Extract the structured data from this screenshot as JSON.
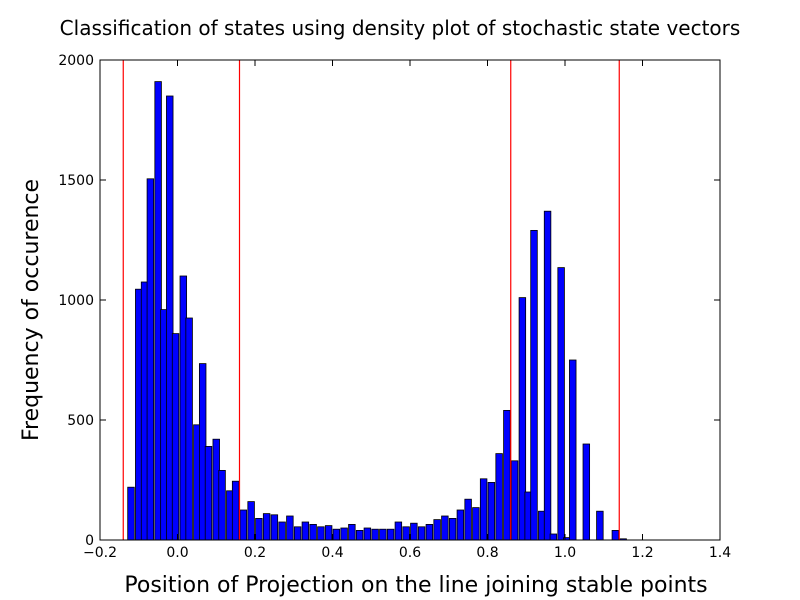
{
  "chart_data": {
    "type": "bar",
    "title": "Classification of states using density plot of stochastic state vectors",
    "xlabel": "Position of Projection on the line joining stable points",
    "ylabel": "Frequency of occurence",
    "xlim": [
      -0.2,
      1.4
    ],
    "ylim": [
      0,
      2000
    ],
    "xticks": [
      "−0.2",
      "0.0",
      "0.2",
      "0.4",
      "0.6",
      "0.8",
      "1.0",
      "1.2",
      "1.4"
    ],
    "yticks": [
      "0",
      "500",
      "1000",
      "1500",
      "2000"
    ],
    "bar_color": "#0000ff",
    "line_color": "#ff0000",
    "grid": false,
    "vlines": [
      -0.14,
      0.16,
      0.86,
      1.14
    ],
    "x": [
      -0.12,
      -0.1,
      -0.085,
      -0.07,
      -0.05,
      -0.035,
      -0.02,
      -0.005,
      0.015,
      0.03,
      0.05,
      0.065,
      0.08,
      0.1,
      0.115,
      0.135,
      0.15,
      0.17,
      0.19,
      0.21,
      0.23,
      0.25,
      0.27,
      0.29,
      0.31,
      0.33,
      0.35,
      0.37,
      0.39,
      0.41,
      0.43,
      0.45,
      0.47,
      0.49,
      0.51,
      0.53,
      0.55,
      0.57,
      0.59,
      0.61,
      0.63,
      0.65,
      0.67,
      0.69,
      0.71,
      0.73,
      0.75,
      0.77,
      0.79,
      0.81,
      0.83,
      0.85,
      0.87,
      0.89,
      0.905,
      0.92,
      0.94,
      0.955,
      0.97,
      0.99,
      1.005,
      1.02,
      1.04,
      1.055,
      1.07,
      1.09,
      1.105,
      1.13,
      1.15,
      1.18,
      1.2,
      1.22,
      1.24
    ],
    "values": [
      220,
      1045,
      1075,
      1505,
      1910,
      960,
      1850,
      860,
      1100,
      925,
      480,
      735,
      390,
      420,
      290,
      205,
      245,
      125,
      160,
      90,
      110,
      105,
      75,
      100,
      55,
      75,
      65,
      55,
      60,
      45,
      50,
      65,
      40,
      50,
      45,
      45,
      45,
      75,
      55,
      70,
      55,
      65,
      85,
      100,
      90,
      125,
      170,
      135,
      255,
      240,
      360,
      540,
      330,
      1010,
      200,
      1290,
      120,
      1370,
      25,
      1135,
      10,
      750,
      0,
      400,
      0,
      120,
      0,
      40,
      5,
      0,
      0,
      0,
      0
    ]
  }
}
